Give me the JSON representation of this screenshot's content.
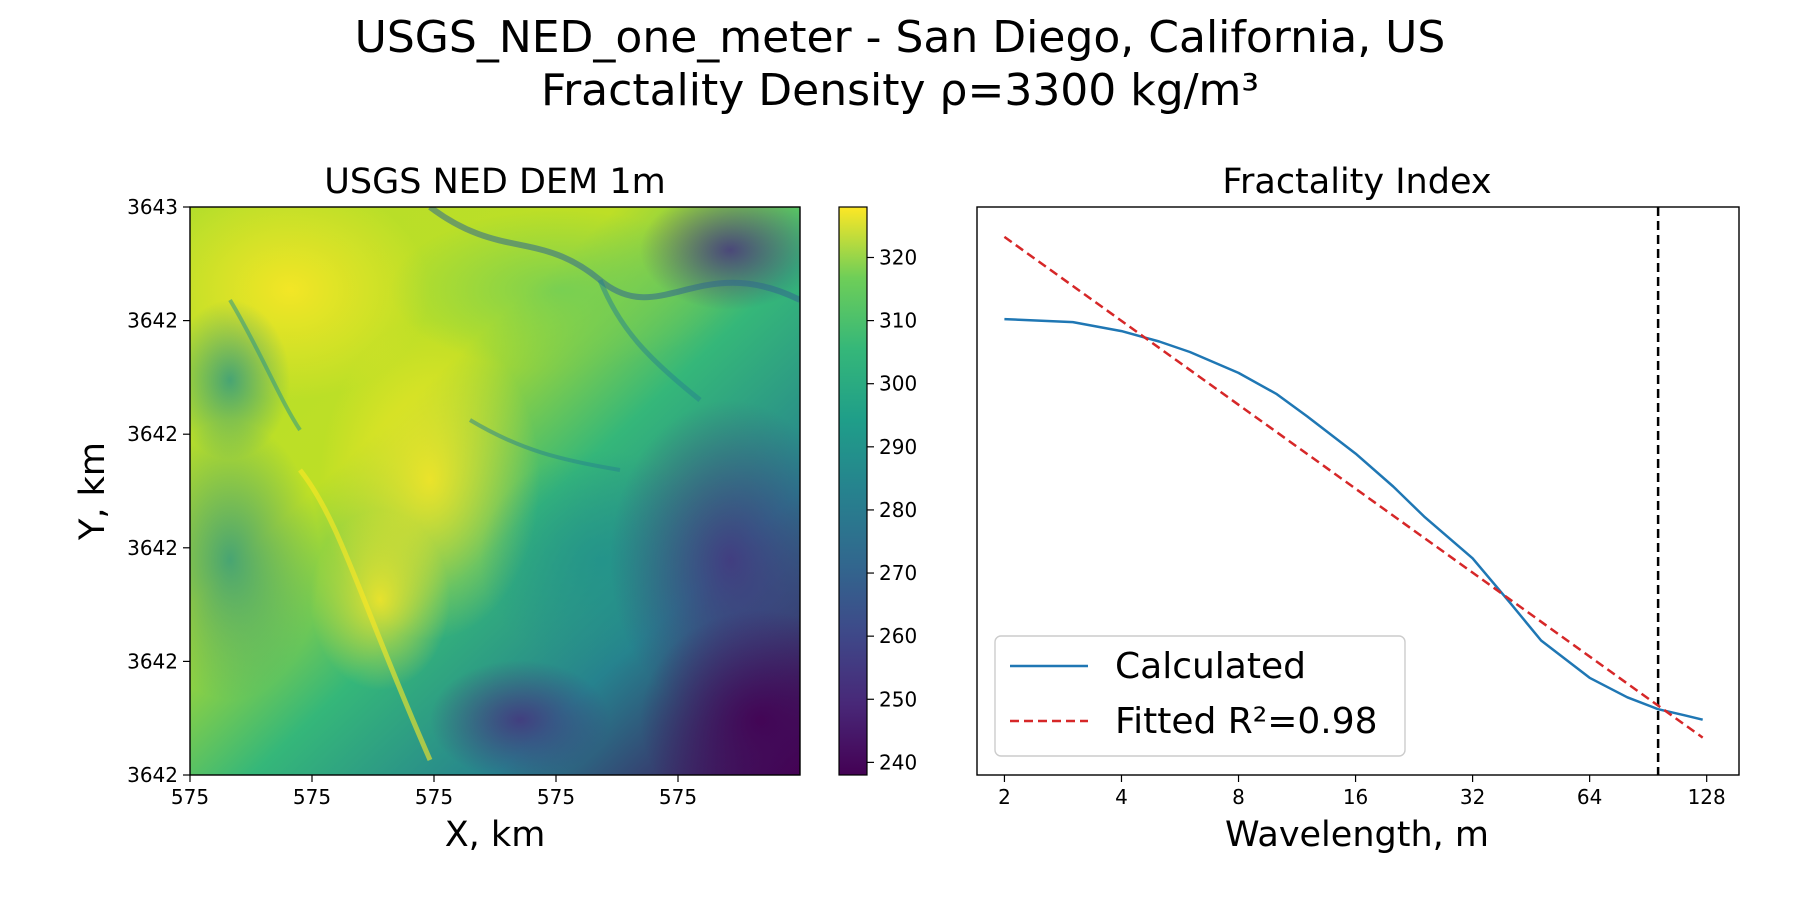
{
  "figure": {
    "title_line1": "USGS_NED_one_meter - San Diego, California, US",
    "title_line2": "Fractality Density ρ=3300 kg/m³"
  },
  "chart_data": [
    {
      "type": "heatmap",
      "title": "USGS NED DEM 1m",
      "xlabel": "X, km",
      "ylabel": "Y, km",
      "x_tick_labels": [
        "575",
        "575",
        "575",
        "575",
        "575"
      ],
      "y_tick_labels": [
        "3643",
        "3642",
        "3642",
        "3642",
        "3642",
        "3642"
      ],
      "colormap": "viridis",
      "colorbar": {
        "range": [
          238,
          328
        ],
        "ticks": [
          240,
          250,
          260,
          270,
          280,
          290,
          300,
          310,
          320
        ],
        "tick_labels": [
          "240",
          "250",
          "260",
          "270",
          "280",
          "290",
          "300",
          "310",
          "320"
        ]
      }
    },
    {
      "type": "line",
      "title": "Fractality Index",
      "xlabel": "Wavelength, m",
      "ylabel": "",
      "x_scale": "log2",
      "xlim": [
        1.7,
        155
      ],
      "x_ticks": [
        2,
        4,
        8,
        16,
        32,
        64,
        128
      ],
      "x_tick_labels": [
        "2",
        "4",
        "8",
        "16",
        "32",
        "64",
        "128"
      ],
      "grid": false,
      "legend_position": "lower-left",
      "vline": {
        "x": 96,
        "color": "#000000",
        "style": "dashed"
      },
      "series": [
        {
          "name": "Calculated",
          "color": "#1f77b4",
          "style": "solid",
          "x": [
            2,
            3,
            4,
            5,
            6,
            8,
            10,
            12,
            16,
            20,
            24,
            32,
            40,
            48,
            64,
            80,
            96,
            112,
            125
          ],
          "y": [
            2.7,
            2.68,
            2.62,
            2.55,
            2.48,
            2.34,
            2.2,
            2.05,
            1.8,
            1.58,
            1.38,
            1.1,
            0.8,
            0.55,
            0.3,
            0.17,
            0.09,
            0.05,
            0.02
          ]
        },
        {
          "name": "Fitted R²=0.98",
          "color": "#d62728",
          "style": "dashed",
          "x": [
            2,
            125
          ],
          "y": [
            3.25,
            -0.1
          ]
        }
      ],
      "ylim": [
        -0.35,
        3.45
      ]
    }
  ]
}
